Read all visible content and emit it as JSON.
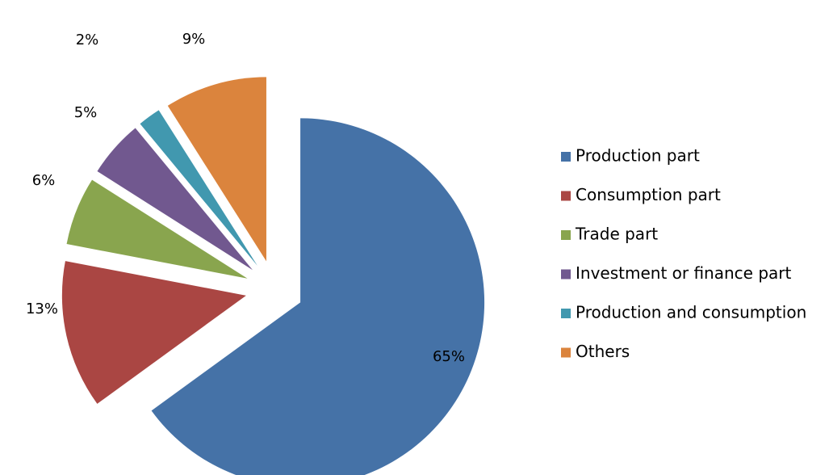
{
  "chart_data": {
    "type": "pie",
    "exploded": true,
    "legend_position": "right",
    "slices": [
      {
        "name": "Production part",
        "value": 65,
        "label": "65%",
        "color": "#4572A7"
      },
      {
        "name": "Consumption part",
        "value": 13,
        "label": "13%",
        "color": "#AA4643"
      },
      {
        "name": "Trade part",
        "value": 6,
        "label": "6%",
        "color": "#89A54E"
      },
      {
        "name": "Investment or finance part",
        "value": 5,
        "label": "5%",
        "color": "#71588F"
      },
      {
        "name": "Production and consumption",
        "value": 2,
        "label": "2%",
        "color": "#4198AF"
      },
      {
        "name": "Others",
        "value": 9,
        "label": "9%",
        "color": "#DB843D"
      }
    ]
  }
}
